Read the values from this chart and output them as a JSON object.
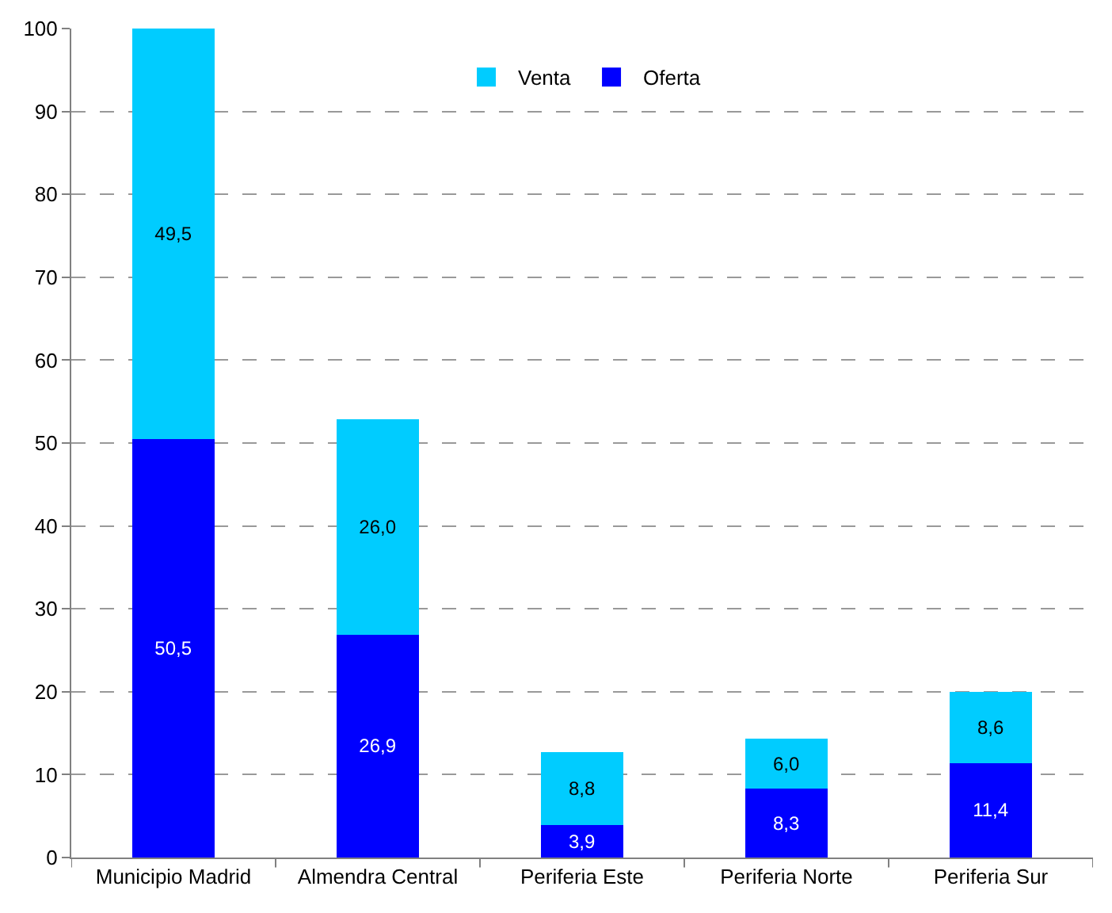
{
  "chart_data": {
    "type": "bar",
    "stacked": true,
    "categories": [
      "Municipio Madrid",
      "Almendra Central",
      "Periferia Este",
      "Periferia Norte",
      "Periferia Sur"
    ],
    "series": [
      {
        "name": "Oferta",
        "color": "#0000ff",
        "values": [
          50.5,
          26.9,
          3.9,
          8.3,
          11.4
        ],
        "value_labels": [
          "50,5",
          "26,9",
          "3,9",
          "8,3",
          "11,4"
        ]
      },
      {
        "name": "Venta",
        "color": "#00ccff",
        "values": [
          49.5,
          26.0,
          8.8,
          6.0,
          8.6
        ],
        "value_labels": [
          "49,5",
          "26,0",
          "8,8",
          "6,0",
          "8,6"
        ]
      }
    ],
    "ylim": [
      0,
      100
    ],
    "yticks": [
      0,
      10,
      20,
      30,
      40,
      50,
      60,
      70,
      80,
      90,
      100
    ],
    "grid": "y",
    "legend": "top"
  }
}
